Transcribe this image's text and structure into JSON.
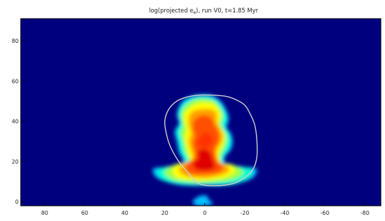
{
  "chart_data": {
    "type": "heatmap",
    "title": {
      "pre": "log(projected e",
      "sub": "e",
      "post": "), run V0, t=1.85 Myr"
    },
    "xlabel": "",
    "ylabel": "",
    "xlim": [
      92,
      -88
    ],
    "ylim": [
      -2,
      91
    ],
    "x_ticks": [
      {
        "value": 80,
        "label": "80"
      },
      {
        "value": 60,
        "label": "60"
      },
      {
        "value": 40,
        "label": "40"
      },
      {
        "value": 20,
        "label": "20"
      },
      {
        "value": 0,
        "label": "0"
      },
      {
        "value": -20,
        "label": "-20"
      },
      {
        "value": -40,
        "label": "-40"
      },
      {
        "value": -60,
        "label": "-60"
      },
      {
        "value": -80,
        "label": "-80"
      }
    ],
    "y_ticks": [
      {
        "value": 0,
        "label": "0"
      },
      {
        "value": 20,
        "label": "20"
      },
      {
        "value": 40,
        "label": "40"
      },
      {
        "value": 60,
        "label": "60"
      },
      {
        "value": 80,
        "label": "80"
      }
    ],
    "grid": false,
    "colormap": [
      "#00007f",
      "#0000ff",
      "#00bfff",
      "#00ffd0",
      "#a0ff40",
      "#ffff00",
      "#ffa000",
      "#ff5000",
      "#e00000"
    ],
    "background_color": "#00007f",
    "outline_contour": {
      "color": "#d0d0d0",
      "points": [
        [
          3,
          9
        ],
        [
          -5,
          8
        ],
        [
          -14,
          9
        ],
        [
          -20,
          12
        ],
        [
          -24,
          16
        ],
        [
          -26,
          22
        ],
        [
          -26,
          31
        ],
        [
          -25,
          38
        ],
        [
          -23,
          43
        ],
        [
          -20,
          48
        ],
        [
          -15,
          51
        ],
        [
          -10,
          52.5
        ],
        [
          -3,
          53
        ],
        [
          3,
          53
        ],
        [
          9,
          52
        ],
        [
          14,
          50
        ],
        [
          18,
          46
        ],
        [
          20,
          40
        ],
        [
          19,
          33
        ],
        [
          17,
          27
        ],
        [
          13,
          20
        ],
        [
          8,
          14
        ]
      ]
    },
    "emission_layers": [
      {
        "level": 0.3,
        "color": "#00bfff",
        "points": [
          [
            10,
            17
          ],
          [
            16,
            17
          ],
          [
            23,
            17
          ],
          [
            26,
            16
          ],
          [
            24,
            12
          ],
          [
            16,
            9
          ],
          [
            8,
            8
          ],
          [
            0,
            8
          ],
          [
            -8,
            8
          ],
          [
            -16,
            9
          ],
          [
            -24,
            12
          ],
          [
            -26,
            16
          ],
          [
            -23,
            17
          ],
          [
            -16,
            17
          ],
          [
            -11,
            17
          ],
          [
            -10,
            22
          ],
          [
            -13,
            26
          ],
          [
            -14,
            30
          ],
          [
            -13,
            34
          ],
          [
            -11,
            37
          ],
          [
            -12,
            41
          ],
          [
            -11,
            45
          ],
          [
            -8,
            50
          ],
          [
            -3,
            53
          ],
          [
            4,
            53
          ],
          [
            10,
            51
          ],
          [
            13,
            47
          ],
          [
            14,
            43
          ],
          [
            13,
            39
          ],
          [
            15,
            35
          ],
          [
            14,
            30
          ],
          [
            13,
            25
          ],
          [
            11,
            21
          ]
        ]
      },
      {
        "level": 0.35,
        "color": "#00bfff",
        "points": [
          [
            2,
            3
          ],
          [
            -1,
            3
          ],
          [
            -2,
            1
          ],
          [
            -4,
            -1
          ],
          [
            0,
            -2
          ],
          [
            4,
            -2
          ],
          [
            6,
            0
          ],
          [
            4,
            2
          ]
        ]
      },
      {
        "level": 0.45,
        "color": "#00ffd0",
        "points": [
          [
            9,
            18
          ],
          [
            15,
            18
          ],
          [
            21,
            17
          ],
          [
            24,
            15
          ],
          [
            21,
            11
          ],
          [
            14,
            9
          ],
          [
            7,
            8.5
          ],
          [
            0,
            8.5
          ],
          [
            -7,
            8.5
          ],
          [
            -14,
            9
          ],
          [
            -21,
            11
          ],
          [
            -24,
            15
          ],
          [
            -21,
            17
          ],
          [
            -14,
            18
          ],
          [
            -10,
            18
          ],
          [
            -9,
            22
          ],
          [
            -12,
            26
          ],
          [
            -13,
            30
          ],
          [
            -12,
            34
          ],
          [
            -10,
            37
          ],
          [
            -11,
            41
          ],
          [
            -10,
            45
          ],
          [
            -7,
            49
          ],
          [
            -2,
            52
          ],
          [
            4,
            52
          ],
          [
            9,
            50
          ],
          [
            12,
            47
          ],
          [
            13,
            43
          ],
          [
            12,
            39
          ],
          [
            14,
            35
          ],
          [
            13,
            30
          ],
          [
            12,
            25
          ],
          [
            10,
            21
          ]
        ]
      },
      {
        "level": 0.6,
        "color": "#a0ff40",
        "points": [
          [
            8,
            19
          ],
          [
            13,
            19
          ],
          [
            18,
            17
          ],
          [
            20,
            14
          ],
          [
            16,
            11
          ],
          [
            10,
            10
          ],
          [
            4,
            9.5
          ],
          [
            -2,
            9.5
          ],
          [
            -8,
            10
          ],
          [
            -14,
            11
          ],
          [
            -19,
            14
          ],
          [
            -17,
            17
          ],
          [
            -12,
            19
          ],
          [
            -8,
            19
          ],
          [
            -8,
            23
          ],
          [
            -10,
            27
          ],
          [
            -11,
            31
          ],
          [
            -10,
            35
          ],
          [
            -8,
            38
          ],
          [
            -9,
            42
          ],
          [
            -8,
            46
          ],
          [
            -5,
            50
          ],
          [
            -1,
            51
          ],
          [
            4,
            51
          ],
          [
            8,
            49
          ],
          [
            11,
            46
          ],
          [
            12,
            42
          ],
          [
            11,
            38
          ],
          [
            12,
            34
          ],
          [
            11,
            30
          ],
          [
            10,
            25
          ],
          [
            8,
            21
          ]
        ]
      },
      {
        "level": 0.72,
        "color": "#ffff00",
        "points": [
          [
            7,
            20
          ],
          [
            12,
            19
          ],
          [
            16,
            16
          ],
          [
            14,
            12
          ],
          [
            8,
            11
          ],
          [
            2,
            10.5
          ],
          [
            -4,
            11
          ],
          [
            -10,
            12
          ],
          [
            -15,
            15
          ],
          [
            -13,
            18
          ],
          [
            -8,
            19.5
          ],
          [
            -7,
            24
          ],
          [
            -9,
            28
          ],
          [
            -10,
            32
          ],
          [
            -9,
            35
          ],
          [
            -7,
            39
          ],
          [
            -8,
            43
          ],
          [
            -6,
            47
          ],
          [
            -3,
            49
          ],
          [
            3,
            49
          ],
          [
            7,
            47
          ],
          [
            10,
            44
          ],
          [
            10,
            40
          ],
          [
            9,
            36
          ],
          [
            10,
            32
          ],
          [
            9,
            27
          ],
          [
            8,
            23
          ]
        ]
      },
      {
        "level": 0.82,
        "color": "#ffa000",
        "points": [
          [
            6,
            21
          ],
          [
            10,
            19
          ],
          [
            13,
            16
          ],
          [
            10,
            13
          ],
          [
            4,
            12
          ],
          [
            -2,
            12
          ],
          [
            -7,
            13
          ],
          [
            -12,
            15
          ],
          [
            -11,
            18
          ],
          [
            -7,
            20
          ],
          [
            -6,
            25
          ],
          [
            -8,
            29
          ],
          [
            -9,
            32
          ],
          [
            -8,
            36
          ],
          [
            -6,
            40
          ],
          [
            -6,
            44
          ],
          [
            -3,
            46
          ],
          [
            2,
            46
          ],
          [
            6,
            45
          ],
          [
            8,
            42
          ],
          [
            8,
            38
          ],
          [
            7,
            34
          ],
          [
            8,
            30
          ],
          [
            7,
            26
          ]
        ]
      },
      {
        "level": 0.92,
        "color": "#ff5000",
        "points": [
          [
            5,
            22
          ],
          [
            8,
            20
          ],
          [
            10,
            17
          ],
          [
            7,
            14
          ],
          [
            2,
            13.5
          ],
          [
            -4,
            14
          ],
          [
            -8,
            15
          ],
          [
            -9,
            18
          ],
          [
            -6,
            21
          ],
          [
            -5,
            26
          ],
          [
            -7,
            30
          ],
          [
            -7,
            34
          ],
          [
            -5,
            38
          ],
          [
            -3,
            42
          ],
          [
            1,
            43
          ],
          [
            5,
            41
          ],
          [
            6,
            37
          ],
          [
            5,
            33
          ],
          [
            6,
            29
          ],
          [
            5,
            25
          ]
        ]
      },
      {
        "level": 1.0,
        "color": "#e00000",
        "points": [
          [
            3,
            22
          ],
          [
            6,
            19
          ],
          [
            4,
            16
          ],
          [
            -1,
            15.5
          ],
          [
            -5,
            17
          ],
          [
            -4,
            21
          ],
          [
            -3,
            24
          ],
          [
            -1,
            26
          ],
          [
            2,
            26
          ],
          [
            4,
            24
          ]
        ]
      },
      {
        "level": 0.97,
        "color": "#ff3000",
        "points": [
          [
            2,
            32
          ],
          [
            4,
            30
          ],
          [
            3,
            28
          ],
          [
            0,
            27
          ],
          [
            -3,
            28
          ],
          [
            -4,
            31
          ],
          [
            -2,
            34
          ],
          [
            1,
            34
          ]
        ]
      }
    ]
  }
}
